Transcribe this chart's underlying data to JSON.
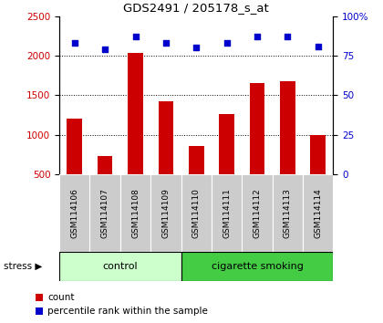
{
  "title": "GDS2491 / 205178_s_at",
  "samples": [
    "GSM114106",
    "GSM114107",
    "GSM114108",
    "GSM114109",
    "GSM114110",
    "GSM114111",
    "GSM114112",
    "GSM114113",
    "GSM114114"
  ],
  "counts": [
    1200,
    730,
    2030,
    1430,
    860,
    1260,
    1650,
    1680,
    1000
  ],
  "percentiles": [
    83,
    79,
    87,
    83,
    80,
    83,
    87,
    87,
    81
  ],
  "ylim_left": [
    500,
    2500
  ],
  "ylim_right": [
    0,
    100
  ],
  "yticks_left": [
    500,
    1000,
    1500,
    2000,
    2500
  ],
  "yticks_right": [
    0,
    25,
    50,
    75,
    100
  ],
  "bar_color": "#cc0000",
  "dot_color": "#0000cc",
  "n_control": 4,
  "n_smoking": 5,
  "control_label": "control",
  "smoking_label": "cigarette smoking",
  "stress_label": "stress",
  "control_color": "#ccffcc",
  "smoking_color": "#44cc44",
  "bg_color_labels": "#cccccc",
  "legend_count_label": "count",
  "legend_percentile_label": "percentile rank within the sample"
}
